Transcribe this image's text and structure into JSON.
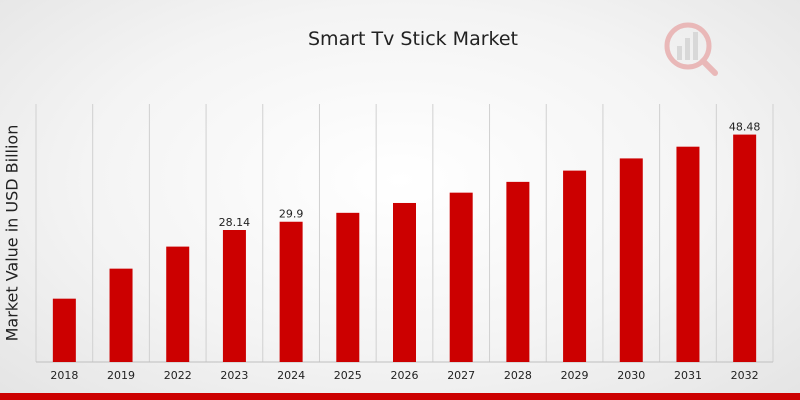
{
  "chart_data": {
    "type": "bar",
    "title": "Smart Tv Stick Market",
    "xlabel": "",
    "ylabel": "Market Value in USD Billion",
    "categories": [
      "2018",
      "2019",
      "2022",
      "2023",
      "2024",
      "2025",
      "2026",
      "2027",
      "2028",
      "2029",
      "2030",
      "2031",
      "2032"
    ],
    "values": [
      13.5,
      19.9,
      24.6,
      28.14,
      29.9,
      31.8,
      33.9,
      36.1,
      38.4,
      40.8,
      43.4,
      45.9,
      48.48
    ],
    "data_labels": [
      {
        "index": 3,
        "text": "28.14"
      },
      {
        "index": 4,
        "text": "29.9"
      },
      {
        "index": 12,
        "text": "48.48"
      }
    ],
    "ylim": [
      0,
      55
    ],
    "grid": "vertical",
    "colors": {
      "bar": "#cc0000",
      "grid": "#d0d0d0",
      "accent": "#cc0000"
    }
  },
  "logo": {
    "icon": "market-research-logo-icon"
  }
}
